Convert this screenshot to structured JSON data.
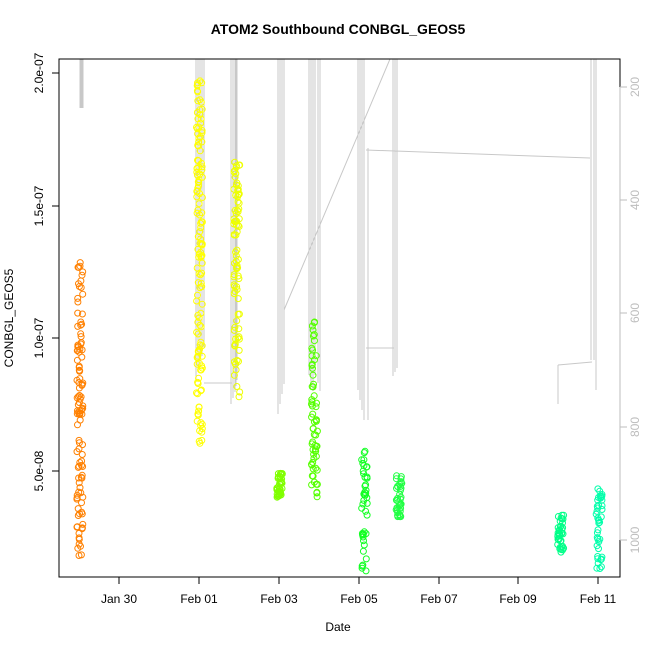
{
  "chart_data": {
    "type": "scatter",
    "title": "ATOM2 Southbound CONBGL_GEOS5",
    "xlabel": "Date",
    "ylabel": "CONBGL_GEOS5",
    "x_ticks": [
      "Jan 30",
      "Feb 01",
      "Feb 03",
      "Feb 05",
      "Feb 07",
      "Feb 09",
      "Feb 11"
    ],
    "y_ticks": [
      "5.0e-08",
      "1.0e-07",
      "1.5e-07",
      "2.0e-07"
    ],
    "y_tick_values": [
      5e-08,
      1e-07,
      1.5e-07,
      2e-07
    ],
    "right_ticks": [
      "200",
      "400",
      "600",
      "800",
      "1000"
    ],
    "right_tick_values": [
      200,
      400,
      600,
      800,
      1000
    ],
    "xlim": [
      "Jan 28 12:00",
      "Feb 11 12:00"
    ],
    "ylim": [
      1.75e-08,
      2.05e-07
    ],
    "right_ylim": [
      1045,
      130
    ],
    "right_axis_color": "#bdbdbd",
    "marker": "open-circle",
    "series": [
      {
        "x": "Jan 29 00:30",
        "y_range": [
          2.4e-08,
          1.34e-07
        ],
        "color": "#ff8000"
      },
      {
        "x": "Feb 01 00:05",
        "y_range": [
          6.4e-08,
          1.98e-07
        ],
        "color": "#ffff00"
      },
      {
        "x": "Feb 01 22:30",
        "y_range": [
          8.2e-08,
          1.68e-07
        ],
        "color": "#eeff00"
      },
      {
        "x": "Feb 03 00:05",
        "y_range": [
          4.6e-08,
          5.5e-08
        ],
        "color": "#80ff00"
      },
      {
        "x": "Feb 03 21:00",
        "y_range": [
          4.6e-08,
          1.1e-07
        ],
        "color": "#55ff00"
      },
      {
        "x": "Feb 05 03:00",
        "y_range": [
          1.9e-08,
          6.3e-08
        ],
        "color": "#11ff22"
      },
      {
        "x": "Feb 05 23:30",
        "y_range": [
          3.8e-08,
          5.5e-08
        ],
        "color": "#22ff44"
      },
      {
        "x": "Feb 10 00:30",
        "y_range": [
          2.6e-08,
          4e-08
        ],
        "color": "#00ff88"
      },
      {
        "x": "Feb 10 23:30",
        "y_range": [
          2e-08,
          5e-08
        ],
        "color": "#00ffaa"
      }
    ]
  }
}
